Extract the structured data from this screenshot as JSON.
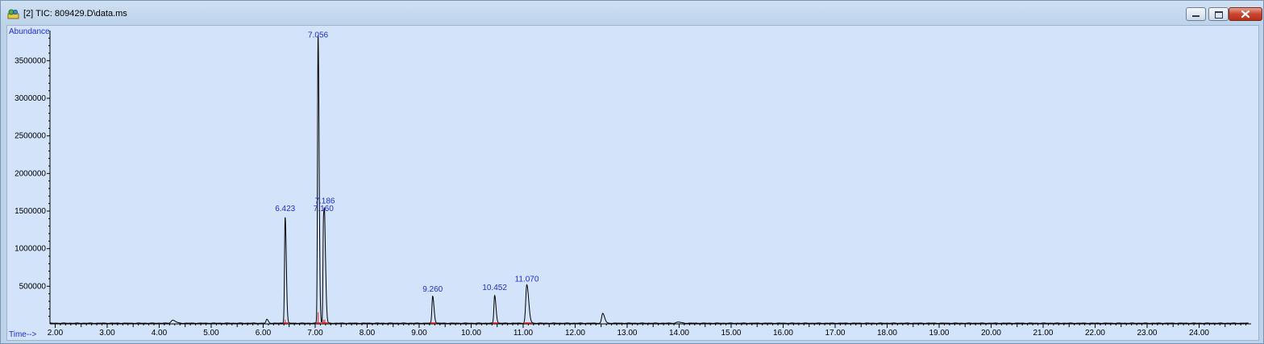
{
  "window": {
    "title": "[2] TIC: 809429.D\\data.ms",
    "icon": "chemstation-icon",
    "controls": [
      "minimize",
      "restore",
      "close"
    ]
  },
  "chart_data": {
    "type": "line",
    "title": "",
    "ylabel": "Abundance",
    "xlabel": "Time-->",
    "xlim": [
      1.9,
      25.0
    ],
    "ylim": [
      0,
      3900000
    ],
    "x_ticks": [
      2.0,
      3.0,
      4.0,
      5.0,
      6.0,
      7.0,
      8.0,
      9.0,
      10.0,
      11.0,
      12.0,
      13.0,
      14.0,
      15.0,
      16.0,
      17.0,
      18.0,
      19.0,
      20.0,
      21.0,
      22.0,
      23.0,
      24.0
    ],
    "x_tick_labels": [
      "2.00",
      "3.00",
      "4.00",
      "5.00",
      "6.00",
      "7.00",
      "8.00",
      "9.00",
      "10.00",
      "11.00",
      "12.00",
      "13.00",
      "14.00",
      "15.00",
      "16.00",
      "17.00",
      "18.00",
      "19.00",
      "20.00",
      "21.00",
      "22.00",
      "23.00",
      "24.00"
    ],
    "y_ticks": [
      500000,
      1000000,
      1500000,
      2000000,
      2500000,
      3000000,
      3500000
    ],
    "y_tick_labels": [
      "500000",
      "1000000",
      "1500000",
      "2000000",
      "2500000",
      "3000000",
      "3500000"
    ],
    "series": [
      {
        "name": "TIC",
        "color": "#000000",
        "peaks": [
          {
            "rt": 4.26,
            "height": 40000,
            "width": 0.03
          },
          {
            "rt": 6.07,
            "height": 50000,
            "width": 0.015
          },
          {
            "rt": 6.423,
            "height": 1410000,
            "width": 0.012
          },
          {
            "rt": 7.056,
            "height": 3830000,
            "width": 0.011
          },
          {
            "rt": 7.16,
            "height": 1330000,
            "width": 0.01
          },
          {
            "rt": 7.186,
            "height": 900000,
            "width": 0.012
          },
          {
            "rt": 9.26,
            "height": 360000,
            "width": 0.014
          },
          {
            "rt": 10.452,
            "height": 370000,
            "width": 0.014
          },
          {
            "rt": 11.07,
            "height": 510000,
            "width": 0.02
          },
          {
            "rt": 12.53,
            "height": 130000,
            "width": 0.02
          },
          {
            "rt": 13.98,
            "height": 15000,
            "width": 0.03
          }
        ]
      }
    ],
    "integration_color": "#e02020",
    "peak_labels": [
      {
        "rt": 6.423,
        "text": "6.423",
        "label_y": 1500000
      },
      {
        "rt": 7.056,
        "text": "7.056",
        "label_y": 3810000
      },
      {
        "rt": 7.16,
        "text": "7.160",
        "label_y": 1500000
      },
      {
        "rt": 7.186,
        "text": "7.186",
        "label_y": 1600000
      },
      {
        "rt": 9.26,
        "text": "9.260",
        "label_y": 430000
      },
      {
        "rt": 10.452,
        "text": "10.452",
        "label_y": 450000
      },
      {
        "rt": 11.07,
        "text": "11.070",
        "label_y": 560000
      }
    ]
  }
}
